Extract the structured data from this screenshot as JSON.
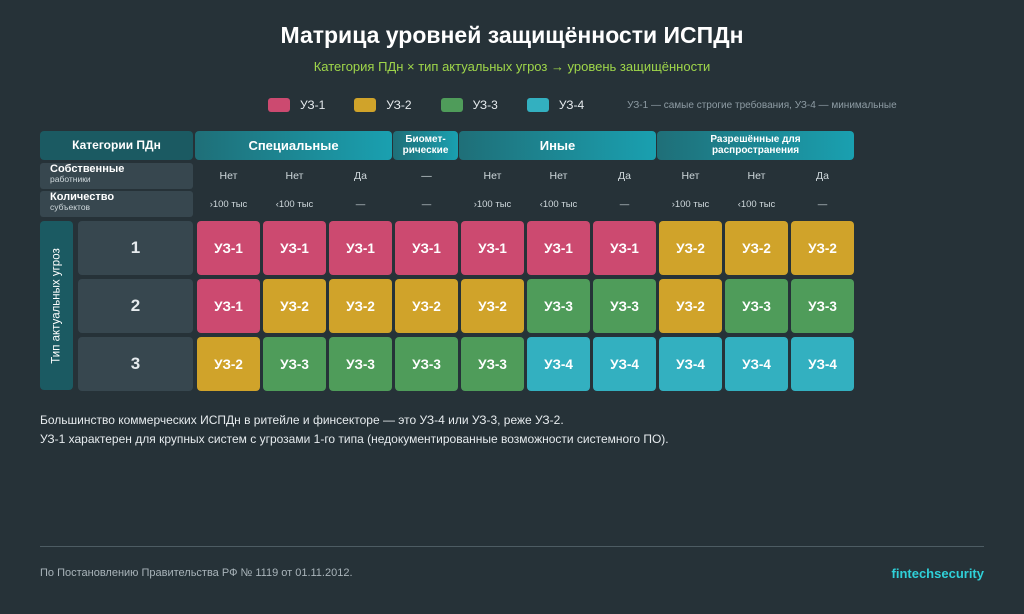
{
  "title": "Матрица уровней защищённости ИСПДн",
  "subtitle": "Категория ПДн × тип актуальных угроз → уровень защищённости",
  "legend": {
    "items": [
      {
        "label": "УЗ-1",
        "color": "#cc4a70"
      },
      {
        "label": "УЗ-2",
        "color": "#d0a32a"
      },
      {
        "label": "УЗ-3",
        "color": "#4f9c5a"
      },
      {
        "label": "УЗ-4",
        "color": "#33b0c0"
      }
    ],
    "note": "УЗ-1 — самые строгие требования, УЗ-4 — минимальные"
  },
  "matrix": {
    "corner_label": "Категории ПДн",
    "categories": [
      "Специальные",
      "Биомет-\nрические",
      "Иные",
      "Разрешённые для\nраспространения"
    ],
    "row_own_employees": {
      "main": "Собственные",
      "sub": "работники"
    },
    "row_subjects_count": {
      "main": "Количество",
      "sub": "субъектов"
    },
    "own_employees": [
      "Нет",
      "Нет",
      "Да",
      "—",
      "Нет",
      "Нет",
      "Да",
      "Нет",
      "Нет",
      "Да"
    ],
    "subjects_count": [
      "›100 тыс",
      "‹100 тыс",
      "—",
      "—",
      "›100 тыс",
      "‹100 тыс",
      "—",
      "›100 тыс",
      "‹100 тыс",
      "—"
    ],
    "threat_axis_label": "Тип актуальных угроз",
    "threat_types": [
      "1",
      "2",
      "3"
    ],
    "levels": [
      [
        "УЗ-1",
        "УЗ-1",
        "УЗ-1",
        "УЗ-1",
        "УЗ-1",
        "УЗ-1",
        "УЗ-1",
        "УЗ-2",
        "УЗ-2",
        "УЗ-2"
      ],
      [
        "УЗ-1",
        "УЗ-2",
        "УЗ-2",
        "УЗ-2",
        "УЗ-2",
        "УЗ-3",
        "УЗ-3",
        "УЗ-2",
        "УЗ-3",
        "УЗ-3"
      ],
      [
        "УЗ-2",
        "УЗ-3",
        "УЗ-3",
        "УЗ-3",
        "УЗ-3",
        "УЗ-4",
        "УЗ-4",
        "УЗ-4",
        "УЗ-4",
        "УЗ-4"
      ]
    ]
  },
  "notes": [
    "Большинство коммерческих ИСПДн в ритейле и финсекторе — это УЗ-4 или УЗ-3, реже УЗ-2.",
    "УЗ-1 характерен для крупных систем с угрозами 1-го типа (недокументированные возможности системного ПО)."
  ],
  "footer": {
    "source": "По Постановлению Правительства РФ № 1119 от 01.11.2012.",
    "brand": "fintechsecurity"
  }
}
